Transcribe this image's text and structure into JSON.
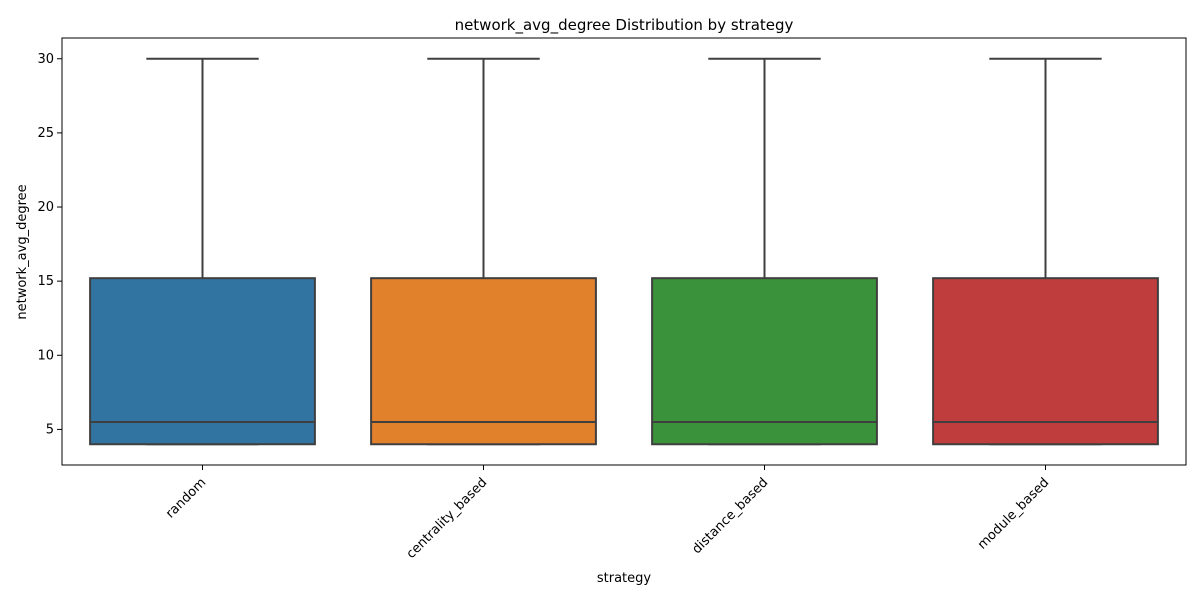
{
  "chart_data": {
    "type": "box",
    "title": "network_avg_degree Distribution by strategy",
    "xlabel": "strategy",
    "ylabel": "network_avg_degree",
    "ylim": [
      2.6,
      31.4
    ],
    "yticks": [
      5,
      10,
      15,
      20,
      25,
      30
    ],
    "categories": [
      "random",
      "centrality_based",
      "distance_based",
      "module_based"
    ],
    "colors": [
      "#3274a1",
      "#e1812c",
      "#3a923a",
      "#c03d3e"
    ],
    "boxes": [
      {
        "category": "random",
        "whisker_low": 4,
        "q1": 4,
        "median": 5.5,
        "q3": 15.2,
        "whisker_high": 30
      },
      {
        "category": "centrality_based",
        "whisker_low": 4,
        "q1": 4,
        "median": 5.5,
        "q3": 15.2,
        "whisker_high": 30
      },
      {
        "category": "distance_based",
        "whisker_low": 4,
        "q1": 4,
        "median": 5.5,
        "q3": 15.2,
        "whisker_high": 30
      },
      {
        "category": "module_based",
        "whisker_low": 4,
        "q1": 4,
        "median": 5.5,
        "q3": 15.2,
        "whisker_high": 30
      }
    ],
    "grid": false,
    "legend": "none"
  }
}
